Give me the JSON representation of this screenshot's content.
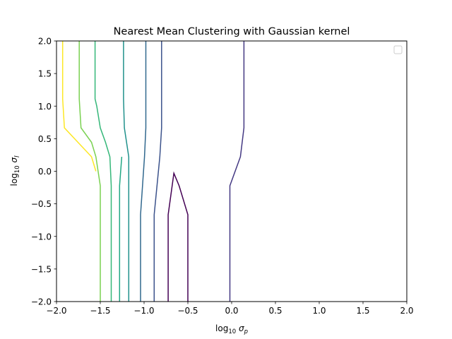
{
  "chart_data": {
    "type": "contour",
    "title": "Nearest Mean Clustering with Gaussian kernel",
    "xlabel": "log$_1$$_0$ σ$_p$",
    "xlabel_parts": {
      "prefix": "log",
      "sub": "10",
      "symbol": "σ",
      "symbol_sub": "p"
    },
    "ylabel_parts": {
      "prefix": "log",
      "sub": "10",
      "symbol": "σ",
      "symbol_sub": "l"
    },
    "xlim": [
      -2.0,
      2.0
    ],
    "ylim": [
      -2.0,
      2.0
    ],
    "xticks": [
      "−2.0",
      "−1.5",
      "−1.0",
      "−0.5",
      "0.0",
      "0.5",
      "1.0",
      "1.5",
      "2.0"
    ],
    "yticks": [
      "−2.0",
      "−1.5",
      "−1.0",
      "−0.5",
      "0.0",
      "0.5",
      "1.0",
      "1.5",
      "2.0"
    ],
    "xtick_values": [
      -2.0,
      -1.5,
      -1.0,
      -0.5,
      0.0,
      0.5,
      1.0,
      1.5,
      2.0
    ],
    "ytick_values": [
      -2.0,
      -1.5,
      -1.0,
      -0.5,
      0.0,
      0.5,
      1.0,
      1.5,
      2.0
    ],
    "grid": false,
    "legend": "top-right (empty)",
    "colormap": "viridis",
    "series": [
      {
        "color": "#440154",
        "points": [
          [
            -0.725,
            -2.0
          ],
          [
            -0.725,
            -0.667
          ],
          [
            -0.66,
            -0.03
          ],
          [
            -0.6,
            -0.222
          ],
          [
            -0.5,
            -0.667
          ],
          [
            -0.5,
            -2.0
          ]
        ]
      },
      {
        "color": "#443983",
        "points": [
          [
            -0.02,
            -2.0
          ],
          [
            -0.02,
            -0.222
          ],
          [
            0.1,
            0.222
          ],
          [
            0.14,
            0.667
          ],
          [
            0.14,
            2.0
          ]
        ]
      },
      {
        "color": "#3b528b",
        "points": [
          [
            -0.8,
            2.0
          ],
          [
            -0.8,
            0.667
          ],
          [
            -0.82,
            0.222
          ],
          [
            -0.885,
            -0.667
          ],
          [
            -0.885,
            -2.0
          ]
        ]
      },
      {
        "color": "#31688e",
        "points": [
          [
            -0.98,
            2.0
          ],
          [
            -0.98,
            0.667
          ],
          [
            -0.995,
            0.222
          ],
          [
            -1.04,
            -0.667
          ],
          [
            -1.04,
            -2.0
          ]
        ]
      },
      {
        "color": "#21918c",
        "points": [
          [
            -1.235,
            2.0
          ],
          [
            -1.235,
            1.111
          ],
          [
            -1.225,
            0.667
          ],
          [
            -1.175,
            0.222
          ],
          [
            -1.175,
            -2.0
          ]
        ]
      },
      {
        "color": "#22a884",
        "points": [
          [
            -1.28,
            -2.0
          ],
          [
            -1.28,
            -0.222
          ],
          [
            -1.255,
            0.222
          ]
        ]
      },
      {
        "color": "#35b779",
        "points": [
          [
            -1.56,
            2.0
          ],
          [
            -1.56,
            1.111
          ],
          [
            -1.54,
            1.0
          ],
          [
            -1.5,
            0.667
          ],
          [
            -1.44,
            0.444
          ],
          [
            -1.39,
            0.222
          ],
          [
            -1.375,
            -0.222
          ],
          [
            -1.375,
            -2.0
          ]
        ]
      },
      {
        "color": "#7ad151",
        "points": [
          [
            -1.74,
            2.0
          ],
          [
            -1.74,
            1.111
          ],
          [
            -1.72,
            0.667
          ],
          [
            -1.6,
            0.444
          ],
          [
            -1.55,
            0.222
          ],
          [
            -1.5,
            -0.222
          ],
          [
            -1.5,
            -0.667
          ],
          [
            -1.5,
            -2.0
          ]
        ]
      },
      {
        "color": "#fde725",
        "points": [
          [
            -1.93,
            2.0
          ],
          [
            -1.93,
            1.111
          ],
          [
            -1.91,
            0.667
          ],
          [
            -1.6,
            0.222
          ],
          [
            -1.55,
            0.0
          ]
        ]
      }
    ]
  }
}
